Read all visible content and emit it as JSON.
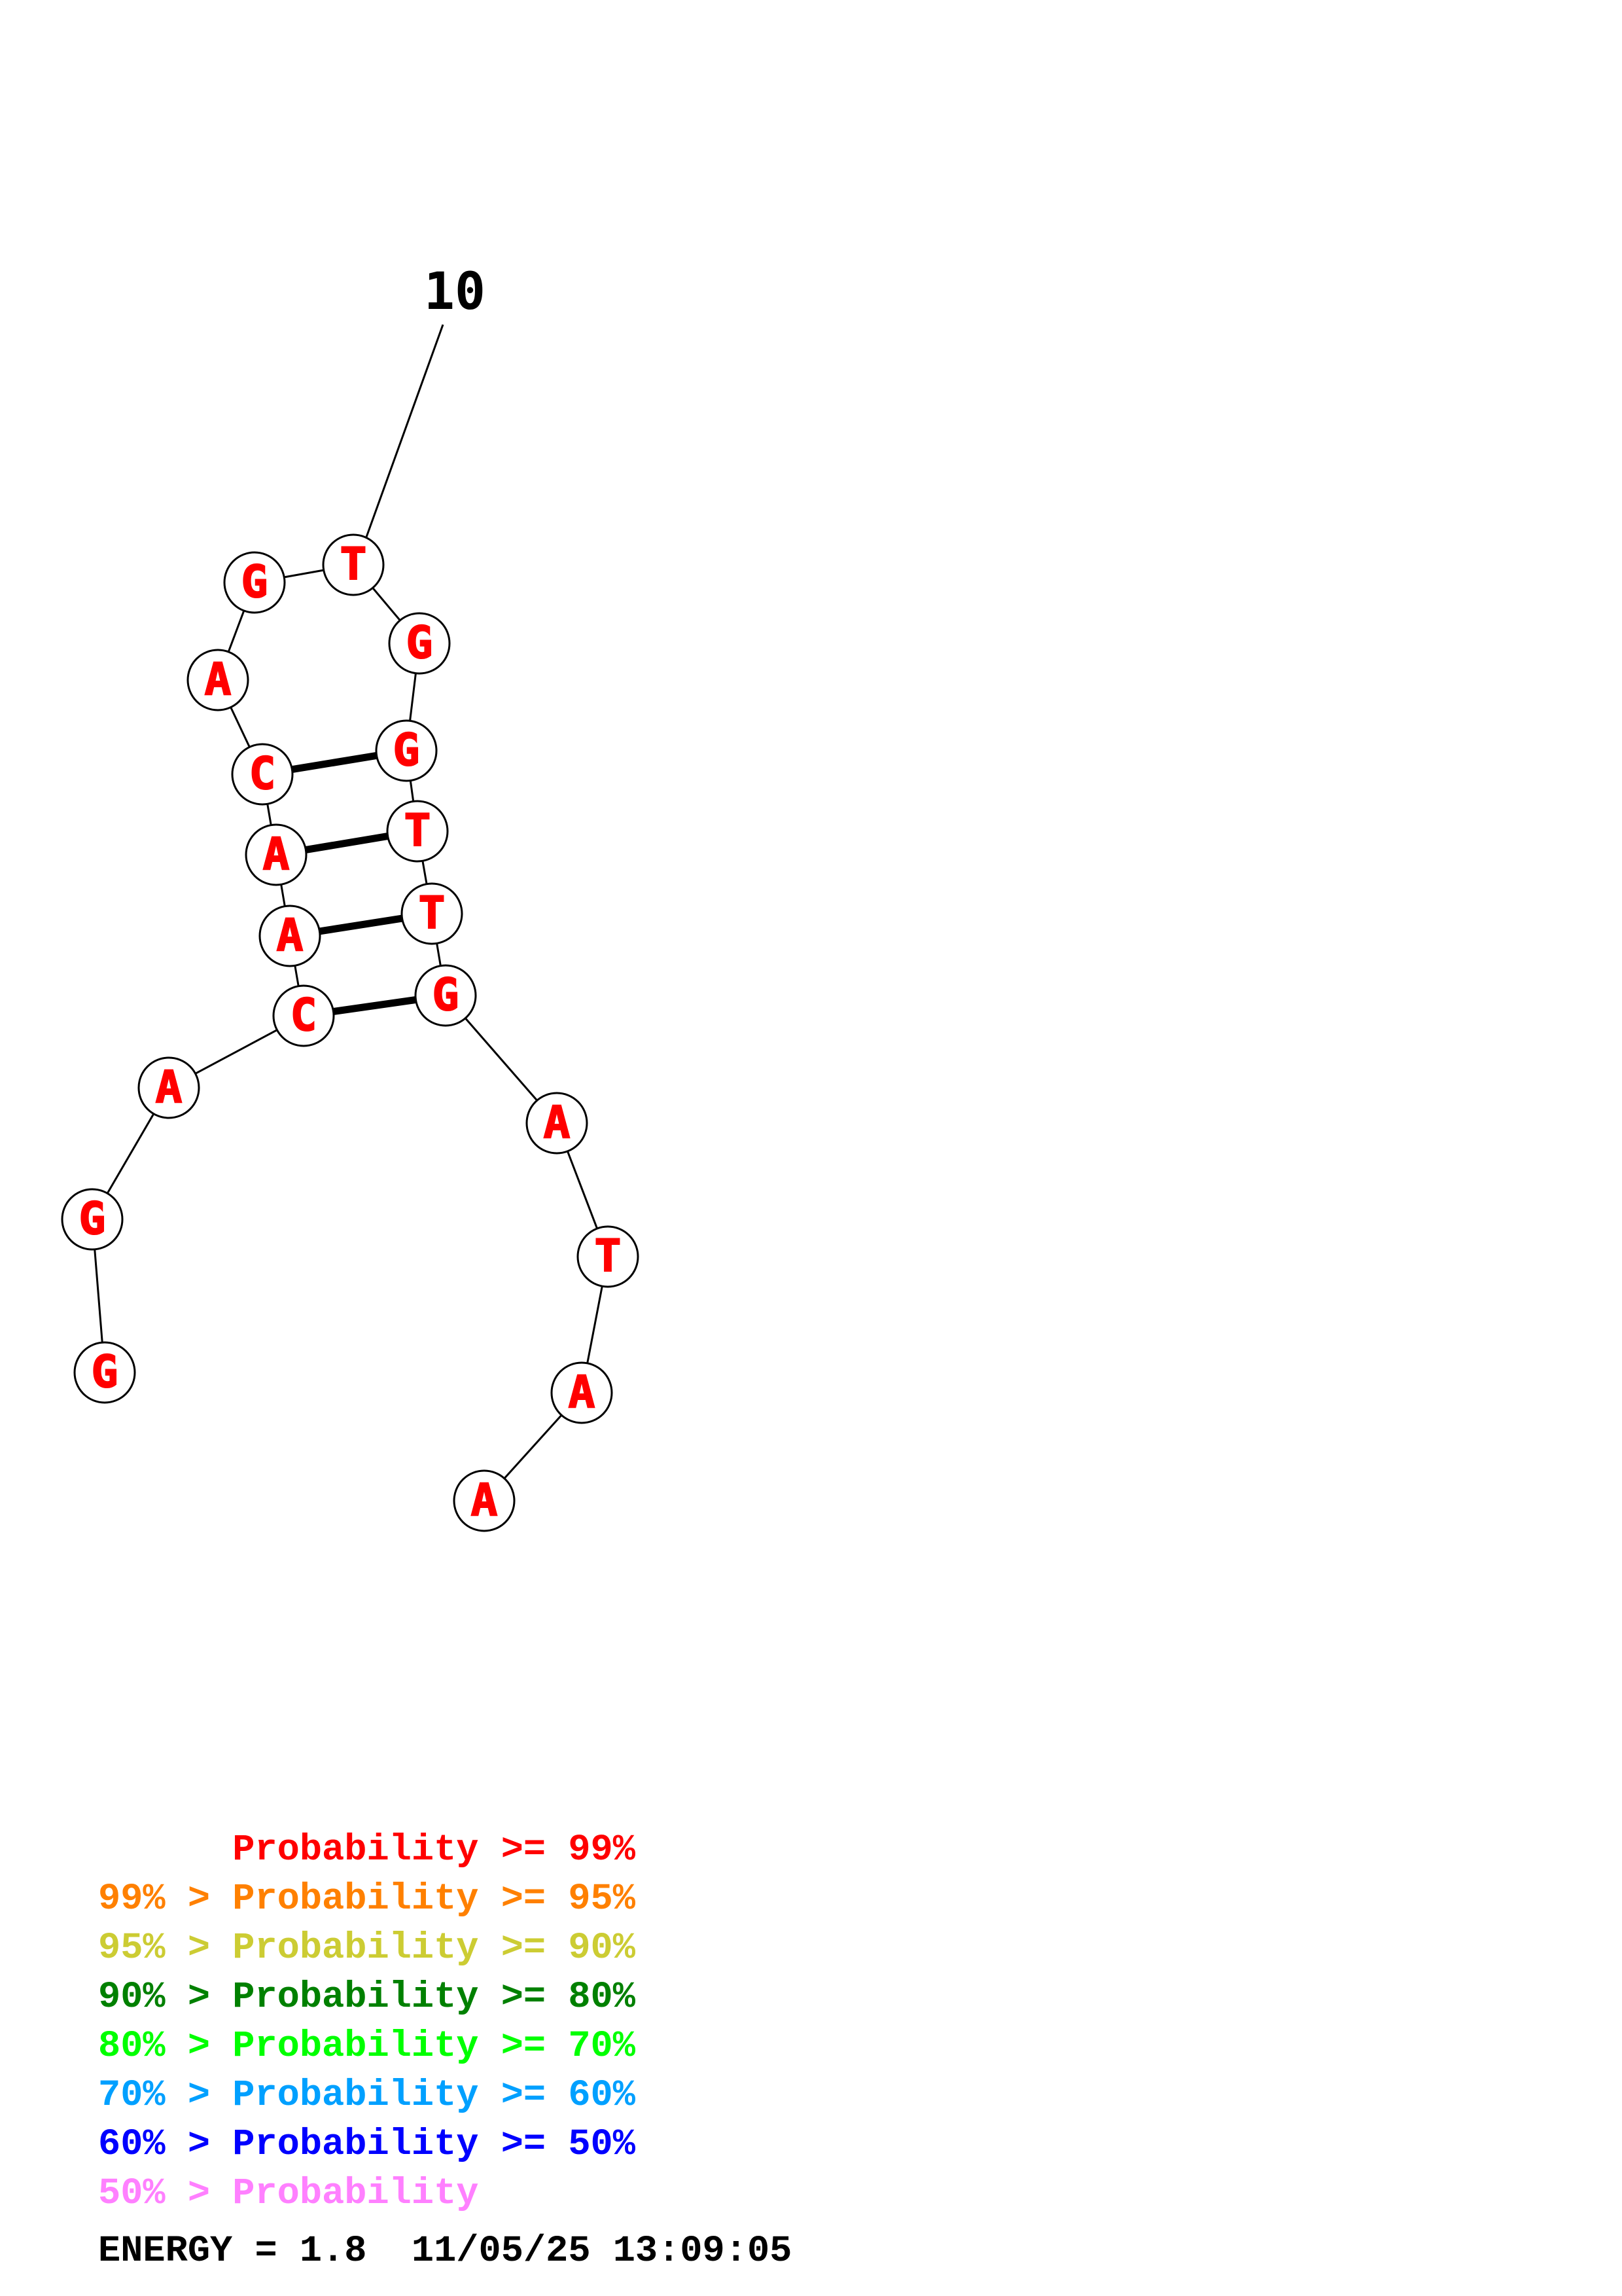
{
  "structure": {
    "position_label": "10",
    "nucleotides": [
      {
        "letter": "G"
      },
      {
        "letter": "G"
      },
      {
        "letter": "A"
      },
      {
        "letter": "C"
      },
      {
        "letter": "A"
      },
      {
        "letter": "A"
      },
      {
        "letter": "C"
      },
      {
        "letter": "A"
      },
      {
        "letter": "G"
      },
      {
        "letter": "T"
      },
      {
        "letter": "G"
      },
      {
        "letter": "G"
      },
      {
        "letter": "T"
      },
      {
        "letter": "T"
      },
      {
        "letter": "G"
      },
      {
        "letter": "A"
      },
      {
        "letter": "T"
      },
      {
        "letter": "A"
      },
      {
        "letter": "A"
      }
    ],
    "base_pairs": [
      [
        3,
        14
      ],
      [
        4,
        13
      ],
      [
        5,
        12
      ],
      [
        6,
        11
      ]
    ],
    "nucleotide_color": "#ff0000"
  },
  "legend": [
    {
      "prefix": "    ",
      "label": "Probability",
      "suffix": " >= 99%",
      "color": "#ff0000"
    },
    {
      "prefix": "99% > ",
      "label": "Probability",
      "suffix": " >= 95%",
      "color": "#ff8000"
    },
    {
      "prefix": "95% > ",
      "label": "Probability",
      "suffix": " >= 90%",
      "color": "#cccc33"
    },
    {
      "prefix": "90% > ",
      "label": "Probability",
      "suffix": " >= 80%",
      "color": "#008000"
    },
    {
      "prefix": "80% > ",
      "label": "Probability",
      "suffix": " >= 70%",
      "color": "#00ff00"
    },
    {
      "prefix": "70% > ",
      "label": "Probability",
      "suffix": " >= 60%",
      "color": "#00a0ff"
    },
    {
      "prefix": "60% > ",
      "label": "Probability",
      "suffix": " >= 50%",
      "color": "#0000ff"
    },
    {
      "prefix": "50% > ",
      "label": "Probability",
      "suffix": "",
      "color": "#ff80ff"
    }
  ],
  "energy": {
    "text": "ENERGY = 1.8  11/05/25 13:09:05"
  }
}
